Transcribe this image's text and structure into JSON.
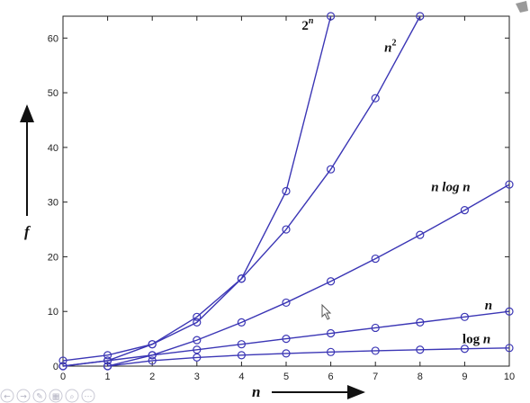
{
  "viewer": {
    "controls": [
      {
        "name": "previous-slide-button",
        "icon": "left-arrow-icon",
        "glyph": "←"
      },
      {
        "name": "next-slide-button",
        "icon": "right-arrow-icon",
        "glyph": "→"
      },
      {
        "name": "pen-tool-button",
        "icon": "pen-icon",
        "glyph": "✎"
      },
      {
        "name": "slides-menu-button",
        "icon": "slides-icon",
        "glyph": "▦"
      },
      {
        "name": "zoom-button",
        "icon": "magnifier-icon",
        "glyph": "⌕"
      },
      {
        "name": "more-options-button",
        "icon": "ellipsis-icon",
        "glyph": "⋯"
      }
    ]
  },
  "chart_data": {
    "type": "line",
    "title": "",
    "xlabel": "n",
    "ylabel": "f",
    "xlim": [
      0,
      10
    ],
    "ylim": [
      0,
      64
    ],
    "xticks": [
      0,
      1,
      2,
      3,
      4,
      5,
      6,
      7,
      8,
      9,
      10
    ],
    "yticks": [
      0,
      10,
      20,
      30,
      40,
      50,
      60
    ],
    "grid": false,
    "legend": "none",
    "line_color": "#3b36b5",
    "marker": "circle",
    "series": [
      {
        "name": "2^n",
        "label_base": "2",
        "label_sup": "n",
        "label_at": [
          5.35,
          61.5
        ],
        "x": [
          0,
          1,
          2,
          3,
          4,
          5,
          6
        ],
        "y": [
          1,
          2,
          4,
          8,
          16,
          32,
          64
        ]
      },
      {
        "name": "n^2",
        "label_base": "n",
        "label_sup": "2",
        "label_at": [
          7.2,
          57.5
        ],
        "x": [
          0,
          1,
          2,
          3,
          4,
          5,
          6,
          7,
          8
        ],
        "y": [
          0,
          1,
          4,
          9,
          16,
          25,
          36,
          49,
          64
        ]
      },
      {
        "name": "n log n",
        "label_base": "n log n",
        "label_sup": "",
        "label_at": [
          8.25,
          32
        ],
        "x": [
          1,
          2,
          3,
          4,
          5,
          6,
          7,
          8,
          9,
          10
        ],
        "y": [
          0,
          2,
          4.75,
          8,
          11.61,
          15.51,
          19.65,
          24,
          28.53,
          33.22
        ]
      },
      {
        "name": "n",
        "label_base": "n",
        "label_sup": "",
        "label_at": [
          9.45,
          10.4
        ],
        "x": [
          0,
          1,
          2,
          3,
          4,
          5,
          6,
          7,
          8,
          9,
          10
        ],
        "y": [
          0,
          1,
          2,
          3,
          4,
          5,
          6,
          7,
          8,
          9,
          10
        ]
      },
      {
        "name": "log n",
        "label_base": "log n",
        "label_sup": "",
        "label_at": [
          8.95,
          4.2
        ],
        "x": [
          1,
          2,
          3,
          4,
          5,
          6,
          7,
          8,
          9,
          10
        ],
        "y": [
          0,
          1,
          1.58,
          2,
          2.32,
          2.58,
          2.81,
          3,
          3.17,
          3.32
        ]
      }
    ]
  }
}
